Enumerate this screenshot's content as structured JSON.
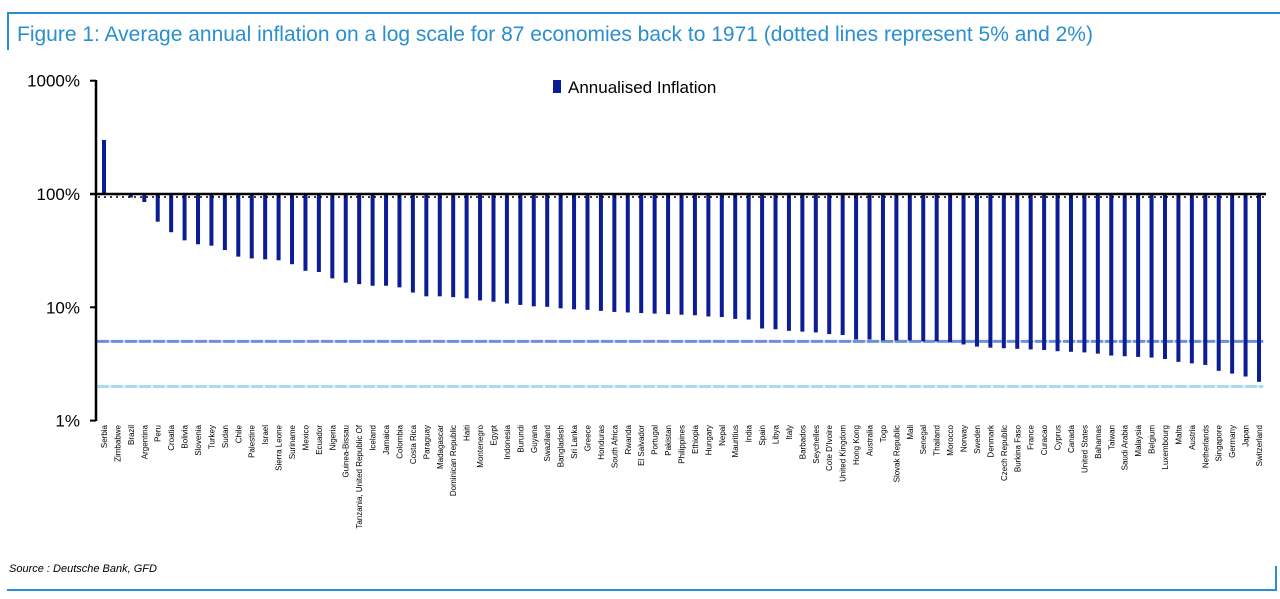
{
  "title": "Figure 1: Average annual inflation on a log scale for 87 economies back to 1971 (dotted lines represent 5% and 2%)",
  "source": "Source : Deutsche Bank, GFD",
  "colors": {
    "bar": "#0c1c94",
    "frame": "#2a8fd0",
    "line_5pct": "#6f8fdc",
    "line_2pct": "#a8daf2"
  },
  "chart_data": {
    "type": "bar",
    "title": "Figure 1: Average annual inflation on a log scale for 87 economies back to 1971 (dotted lines represent 5% and 2%)",
    "yscale": "log",
    "ylim": [
      1,
      1000
    ],
    "bar_baseline": 100,
    "yticks": [
      {
        "value": 1000,
        "label": "1000%"
      },
      {
        "value": 100,
        "label": "100%"
      },
      {
        "value": 10,
        "label": "10%"
      },
      {
        "value": 1,
        "label": "1%"
      }
    ],
    "reference_lines": [
      {
        "value": 5,
        "style": "dashed"
      },
      {
        "value": 2,
        "style": "dashed"
      }
    ],
    "legend": {
      "position": "top-center",
      "entries": [
        "Annualised Inflation"
      ]
    },
    "series": [
      {
        "name": "Annualised Inflation"
      }
    ],
    "categories": [
      "Serbia",
      "Zimbabwe",
      "Brazil",
      "Argentina",
      "Peru",
      "Croatia",
      "Bolivia",
      "Slovenia",
      "Turkey",
      "Sudan",
      "Chile",
      "Palestine",
      "Israel",
      "Sierra Leone",
      "Suriname",
      "Mexico",
      "Ecuador",
      "Nigeria",
      "Guinea-Bissau",
      "Tanzania, United Republic Of",
      "Iceland",
      "Jamaica",
      "Colombia",
      "Costa Rica",
      "Paraguay",
      "Madagascar",
      "Dominican Republic",
      "Haiti",
      "Montenegro",
      "Egypt",
      "Indonesia",
      "Burundi",
      "Guyana",
      "Swaziland",
      "Bangladesh",
      "Sri Lanka",
      "Greece",
      "Honduras",
      "South Africa",
      "Rwanda",
      "El Salvador",
      "Portugal",
      "Pakistan",
      "Philippines",
      "Ethiopia",
      "Hungary",
      "Nepal",
      "Mauritius",
      "India",
      "Spain",
      "Libya",
      "Italy",
      "Barbados",
      "Seychelles",
      "Cote D'Ivoire",
      "United Kingdom",
      "Hong Kong",
      "Australia",
      "Togo",
      "Slovak Republic",
      "Mali",
      "Senegal",
      "Thailand",
      "Morocco",
      "Norway",
      "Sweden",
      "Denmark",
      "Czech Republic",
      "Burkina Faso",
      "France",
      "Curacao",
      "Cyprus",
      "Canada",
      "United States",
      "Bahamas",
      "Taiwan",
      "Saudi Arabia",
      "Malaysia",
      "Belgium",
      "Luxembourg",
      "Malta",
      "Austria",
      "Netherlands",
      "Singapore",
      "Germany",
      "Japan",
      "Switzerland"
    ],
    "values": [
      300,
      97,
      93,
      85,
      57,
      46,
      39,
      36,
      35,
      32,
      28,
      27,
      26.5,
      26,
      24,
      21,
      20.5,
      18,
      16.5,
      16,
      15.5,
      15.5,
      15,
      13.5,
      12.5,
      12.5,
      12.3,
      12,
      11.5,
      11.2,
      10.8,
      10.5,
      10.2,
      10.1,
      9.8,
      9.6,
      9.5,
      9.3,
      9.1,
      9.0,
      8.9,
      8.8,
      8.7,
      8.6,
      8.5,
      8.3,
      8.2,
      7.9,
      7.8,
      6.5,
      6.4,
      6.2,
      6.1,
      6.0,
      5.8,
      5.7,
      5.2,
      5.2,
      5.1,
      5.1,
      5.1,
      5.0,
      5.0,
      4.9,
      4.7,
      4.5,
      4.4,
      4.35,
      4.3,
      4.25,
      4.2,
      4.1,
      4.05,
      4.0,
      3.9,
      3.75,
      3.7,
      3.65,
      3.6,
      3.5,
      3.3,
      3.2,
      3.1,
      2.75,
      2.6,
      2.45,
      2.2
    ]
  }
}
